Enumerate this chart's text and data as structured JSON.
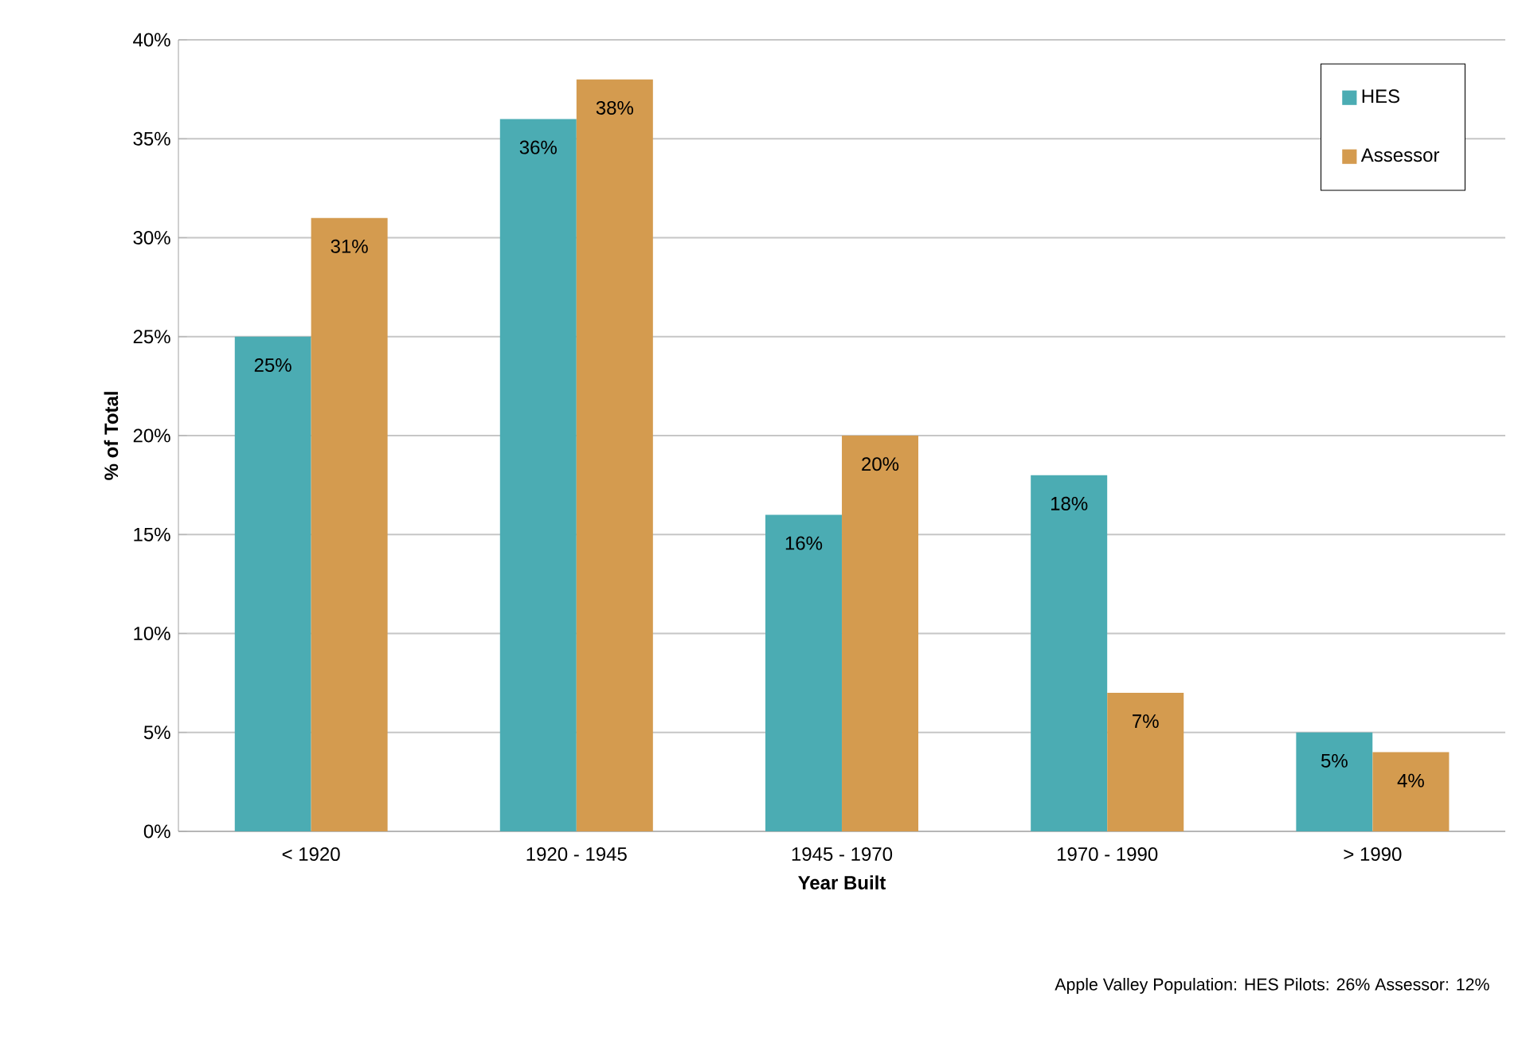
{
  "chart_data": {
    "type": "bar",
    "categories": [
      "< 1920",
      "1920 - 1945",
      "1945 - 1970",
      "1970 - 1990",
      "> 1990"
    ],
    "series": [
      {
        "name": "HES",
        "color": "#4bacb3",
        "values": [
          25,
          36,
          16,
          18,
          5
        ],
        "value_labels": [
          "25%",
          "36%",
          "16%",
          "18%",
          "5%"
        ]
      },
      {
        "name": "Assessor",
        "color": "#d49b4f",
        "values": [
          31,
          38,
          20,
          7,
          4
        ],
        "value_labels": [
          "31%",
          "38%",
          "20%",
          "7%",
          "4%"
        ]
      }
    ],
    "xlabel": "Year Built",
    "ylabel": "% of Total",
    "ylim": [
      0,
      40
    ],
    "yticks": [
      {
        "value": 0,
        "label": "0%"
      },
      {
        "value": 5,
        "label": "5%"
      },
      {
        "value": 10,
        "label": "10%"
      },
      {
        "value": 15,
        "label": "15%"
      },
      {
        "value": 20,
        "label": "20%"
      },
      {
        "value": 25,
        "label": "25%"
      },
      {
        "value": 30,
        "label": "30%"
      },
      {
        "value": 35,
        "label": "35%"
      },
      {
        "value": 40,
        "label": "40%"
      }
    ],
    "grid": "y",
    "legend": "top right",
    "annotations": [
      "Apple Valley Population:   HES Pilots: 26%  Assessor: 12%"
    ]
  }
}
